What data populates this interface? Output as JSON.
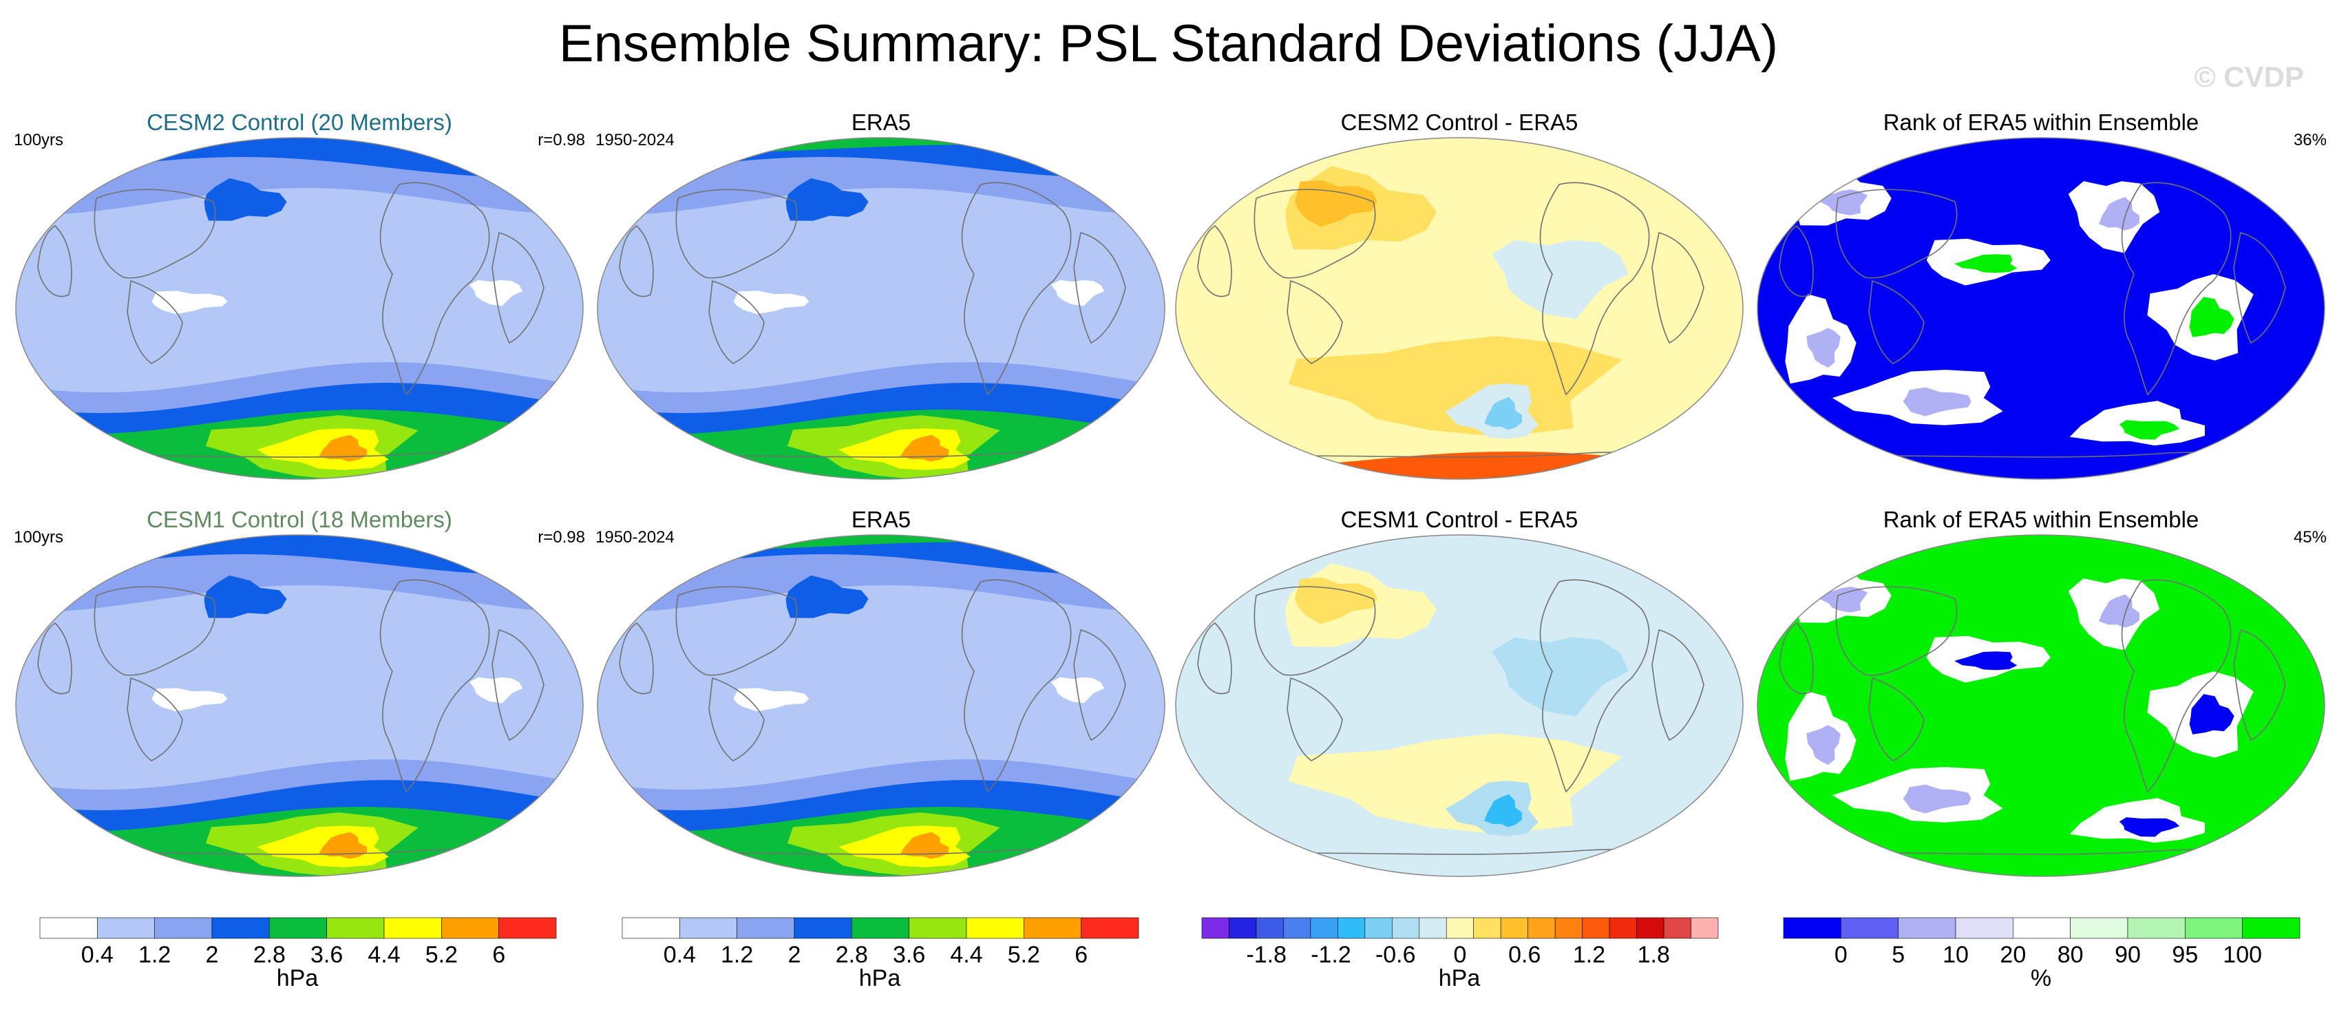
{
  "title": "Ensemble Summary: PSL Standard Deviations (JJA)",
  "watermark": "© CVDP",
  "panels": [
    {
      "title": "CESM2 Control (20 Members)",
      "title_color": "#1f6e86",
      "left": "100yrs",
      "right": "r=0.98",
      "kind": "sd"
    },
    {
      "title": "ERA5",
      "title_color": "#000000",
      "left": "1950-2024",
      "right": "",
      "kind": "sd_obs"
    },
    {
      "title": "CESM2 Control - ERA5",
      "title_color": "#000000",
      "left": "",
      "right": "",
      "kind": "diff"
    },
    {
      "title": "Rank of ERA5 within Ensemble",
      "title_color": "#000000",
      "left": "",
      "right": "36%",
      "kind": "rank"
    },
    {
      "title": "CESM1 Control (18 Members)",
      "title_color": "#5f8a5f",
      "left": "100yrs",
      "right": "r=0.98",
      "kind": "sd"
    },
    {
      "title": "ERA5",
      "title_color": "#000000",
      "left": "1950-2024",
      "right": "",
      "kind": "sd_obs"
    },
    {
      "title": "CESM1 Control - ERA5",
      "title_color": "#000000",
      "left": "",
      "right": "",
      "kind": "diff2"
    },
    {
      "title": "Rank of ERA5 within Ensemble",
      "title_color": "#000000",
      "left": "",
      "right": "45%",
      "kind": "rank2"
    }
  ],
  "colorbars": [
    {
      "unit": "hPa",
      "colors": [
        "#ffffff",
        "#b4c8f8",
        "#8aa4f2",
        "#0f5ee8",
        "#0bbd3c",
        "#96e60f",
        "#ffff00",
        "#ffa000",
        "#ff2a1e"
      ],
      "ticks": [
        "0.4",
        "1.2",
        "2",
        "2.8",
        "3.6",
        "4.4",
        "5.2",
        "6"
      ]
    },
    {
      "unit": "hPa",
      "colors": [
        "#ffffff",
        "#b4c8f8",
        "#8aa4f2",
        "#0f5ee8",
        "#0bbd3c",
        "#96e60f",
        "#ffff00",
        "#ffa000",
        "#ff2a1e"
      ],
      "ticks": [
        "0.4",
        "1.2",
        "2",
        "2.8",
        "3.6",
        "4.4",
        "5.2",
        "6"
      ]
    },
    {
      "unit": "hPa",
      "colors": [
        "#7b2be8",
        "#2424e0",
        "#3c5be6",
        "#4a7ff0",
        "#3aa0f5",
        "#30bdf7",
        "#7dd0f5",
        "#b0def2",
        "#d5ecf5",
        "#fff9b2",
        "#ffe060",
        "#ffc02a",
        "#ffa31a",
        "#ff8210",
        "#ff5a0a",
        "#f02a0a",
        "#d50a0a",
        "#e04848",
        "#ffb0b0"
      ],
      "ticks": [
        "-1.8",
        "-1.2",
        "-0.6",
        "0",
        "0.6",
        "1.2",
        "1.8"
      ]
    },
    {
      "unit": "%",
      "colors": [
        "#0000f5",
        "#6060f5",
        "#b0b0f5",
        "#e0e0f8",
        "#ffffff",
        "#e0fbe0",
        "#b4f5b4",
        "#7df57d",
        "#00f000"
      ],
      "ticks": [
        "0",
        "5",
        "10",
        "20",
        "80",
        "90",
        "95",
        "100"
      ]
    }
  ]
}
